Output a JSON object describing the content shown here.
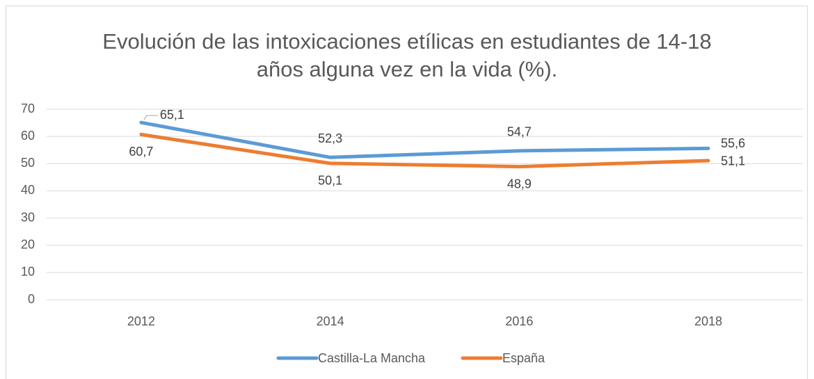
{
  "chart_data": {
    "type": "line",
    "title": "Evolución de las intoxicaciones etílicas en estudiantes de 14-18 años alguna vez en la vida (%).",
    "categories": [
      "2012",
      "2014",
      "2016",
      "2018"
    ],
    "series": [
      {
        "name": "Castilla-La Mancha",
        "color": "#5b9bd5",
        "values": [
          65.1,
          52.3,
          54.7,
          55.6
        ],
        "value_labels": [
          "65,1",
          "52,3",
          "54,7",
          "55,6"
        ]
      },
      {
        "name": "España",
        "color": "#ed7d31",
        "values": [
          60.7,
          50.1,
          48.9,
          51.1
        ],
        "value_labels": [
          "60,7",
          "50,1",
          "48,9",
          "51,1"
        ]
      }
    ],
    "ylim": [
      0,
      70
    ],
    "yticks": [
      0,
      10,
      20,
      30,
      40,
      50,
      60,
      70
    ],
    "grid": true,
    "legend": "bottom"
  }
}
